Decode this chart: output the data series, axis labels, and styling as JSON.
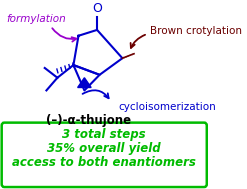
{
  "formylation_label": "formylation",
  "formylation_color": "#9900CC",
  "brown_crotylation_label": "Brown crotylation",
  "brown_crotylation_color": "#6B0000",
  "cycloisomerization_label": "cycloisomerization",
  "cycloisomerization_color": "#0000CC",
  "compound_label": "(–)-α-thujone",
  "compound_color": "#000000",
  "box_line1": "3 total steps",
  "box_line2": "35% overall yield",
  "box_line3": "access to both enantiomers",
  "box_text_color": "#00BB00",
  "box_edge_color": "#00BB00",
  "background_color": "#ffffff",
  "molecule_color": "#0000CC",
  "dark_red": "#6B0000"
}
